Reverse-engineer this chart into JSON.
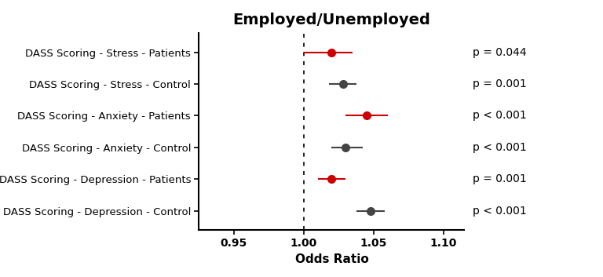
{
  "title": "Employed/Unemployed",
  "xlabel": "Odds Ratio",
  "xlim": [
    0.925,
    1.115
  ],
  "xticks": [
    0.95,
    1.0,
    1.05,
    1.1
  ],
  "xticklabels": [
    "0.95",
    "1.00",
    "1.05",
    "1.10"
  ],
  "vline_x": 1.0,
  "labels": [
    "DASS Scoring - Stress - Patients",
    "DASS Scoring - Stress - Control",
    "DASS Scoring - Anxiety - Patients",
    "DASS Scoring - Anxiety - Control",
    "DASS Scoring - Depression - Patients",
    "DASS Scoring - Depression - Control"
  ],
  "centers": [
    1.02,
    1.028,
    1.045,
    1.03,
    1.02,
    1.048
  ],
  "xerr_left": [
    0.02,
    0.01,
    0.015,
    0.01,
    0.01,
    0.01
  ],
  "xerr_right": [
    0.015,
    0.01,
    0.015,
    0.012,
    0.01,
    0.01
  ],
  "colors": [
    "#cc0000",
    "#444444",
    "#cc0000",
    "#444444",
    "#cc0000",
    "#444444"
  ],
  "p_values": [
    "p = 0.044",
    "p = 0.001",
    "p < 0.001",
    "p < 0.001",
    "p = 0.001",
    "p < 0.001"
  ],
  "background_color": "#ffffff",
  "title_fontsize": 14,
  "label_fontsize": 9.5,
  "tick_fontsize": 10,
  "p_fontsize": 10,
  "markersize": 8,
  "capsize": 3,
  "elinewidth": 1.5,
  "capthick": 1.5
}
